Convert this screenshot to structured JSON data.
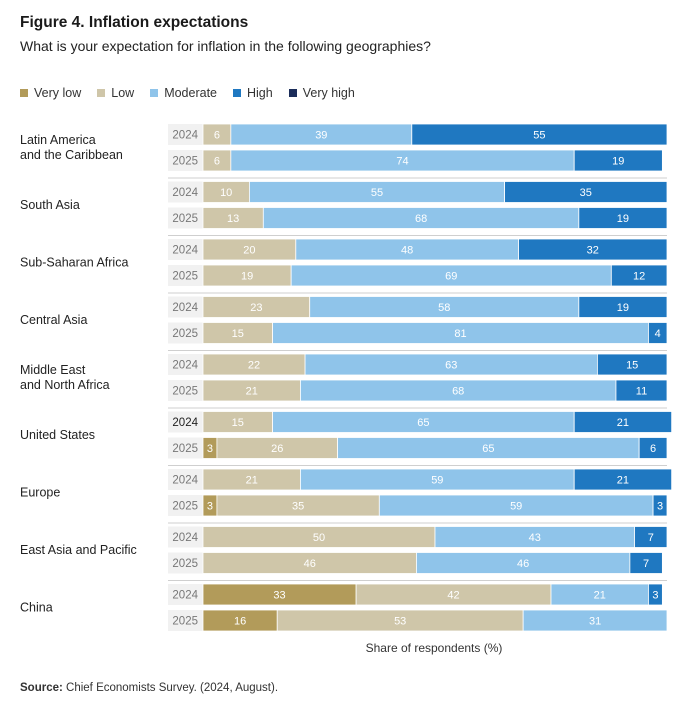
{
  "figure": {
    "title": "Figure 4. Inflation expectations",
    "subtitle": "What is your expectation for inflation in the following geographies?",
    "source_label": "Source:",
    "source_text": "Chief Economists Survey. (2024, August)."
  },
  "chart_data": {
    "type": "bar",
    "orientation": "horizontal",
    "stacked": true,
    "title": "Figure 4. Inflation expectations",
    "subtitle": "What is your expectation for inflation in the following geographies?",
    "xlabel": "Share of respondents (%)",
    "xlim": [
      0,
      100
    ],
    "legend_position": "top-left",
    "series_names": [
      "Very low",
      "Low",
      "Moderate",
      "High",
      "Very high"
    ],
    "colors": [
      "#b29b5a",
      "#cfc6a9",
      "#8fc4ea",
      "#1f78c1",
      "#1b2d5a"
    ],
    "groups": [
      {
        "region": "Latin America\nand the Caribbean",
        "rows": [
          {
            "year": "2024",
            "values": [
              0,
              6,
              39,
              55,
              0
            ]
          },
          {
            "year": "2025",
            "values": [
              0,
              6,
              74,
              19,
              0
            ]
          }
        ]
      },
      {
        "region": "South Asia",
        "rows": [
          {
            "year": "2024",
            "values": [
              0,
              10,
              55,
              35,
              0
            ]
          },
          {
            "year": "2025",
            "values": [
              0,
              13,
              68,
              19,
              0
            ]
          }
        ]
      },
      {
        "region": "Sub-Saharan Africa",
        "rows": [
          {
            "year": "2024",
            "values": [
              0,
              20,
              48,
              32,
              0
            ]
          },
          {
            "year": "2025",
            "values": [
              0,
              19,
              69,
              12,
              0
            ]
          }
        ]
      },
      {
        "region": "Central Asia",
        "rows": [
          {
            "year": "2024",
            "values": [
              0,
              23,
              58,
              19,
              0
            ]
          },
          {
            "year": "2025",
            "values": [
              0,
              15,
              81,
              4,
              0
            ]
          }
        ]
      },
      {
        "region": "Middle East\nand North Africa",
        "rows": [
          {
            "year": "2024",
            "values": [
              0,
              22,
              63,
              15,
              0
            ]
          },
          {
            "year": "2025",
            "values": [
              0,
              21,
              68,
              11,
              0
            ]
          }
        ]
      },
      {
        "region": "United States",
        "rows": [
          {
            "year": "2024",
            "values": [
              0,
              15,
              65,
              21,
              0
            ]
          },
          {
            "year": "2025",
            "values": [
              3,
              26,
              65,
              6,
              0
            ]
          }
        ]
      },
      {
        "region": "Europe",
        "rows": [
          {
            "year": "2024",
            "values": [
              0,
              21,
              59,
              21,
              0
            ]
          },
          {
            "year": "2025",
            "values": [
              3,
              35,
              59,
              3,
              0
            ]
          }
        ]
      },
      {
        "region": "East Asia and Pacific",
        "rows": [
          {
            "year": "2024",
            "values": [
              0,
              50,
              43,
              7,
              0
            ]
          },
          {
            "year": "2025",
            "values": [
              0,
              46,
              46,
              7,
              0
            ]
          }
        ]
      },
      {
        "region": "China",
        "rows": [
          {
            "year": "2024",
            "values": [
              33,
              42,
              21,
              3,
              0
            ]
          },
          {
            "year": "2025",
            "values": [
              16,
              53,
              31,
              0,
              0
            ]
          }
        ]
      }
    ]
  }
}
